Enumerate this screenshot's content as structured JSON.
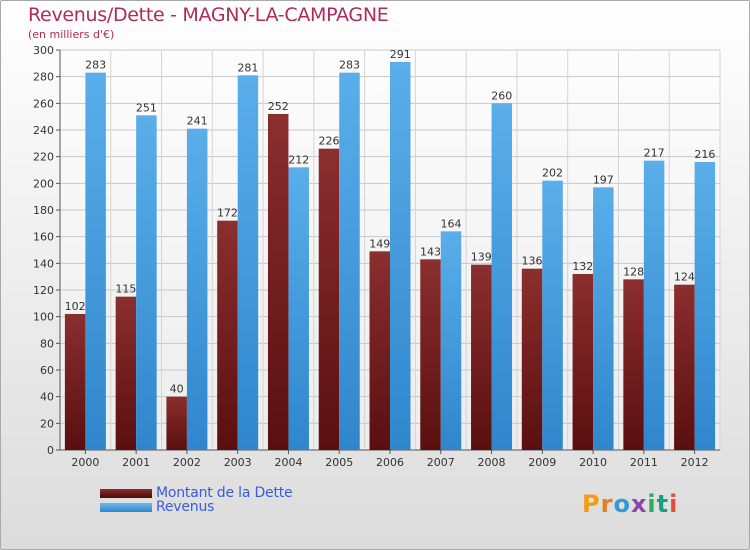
{
  "title": "Revenus/Dette - MAGNY-LA-CAMPAGNE",
  "subtitle": "(en milliers d'€)",
  "legend": {
    "dette_label": "Montant de la Dette",
    "revenus_label": "Revenus"
  },
  "logo_text": "Proxiti",
  "colors": {
    "dette": "#6b1a1a",
    "dette_light": "#8a3333",
    "revenus": "#4a9fde",
    "revenus_light": "#5aaeea",
    "title": "#b02a5c",
    "legend_text": "#3b5bdb"
  },
  "chart_data": {
    "type": "bar",
    "categories": [
      "2000",
      "2001",
      "2002",
      "2003",
      "2004",
      "2005",
      "2006",
      "2007",
      "2008",
      "2009",
      "2010",
      "2011",
      "2012"
    ],
    "series": [
      {
        "name": "Montant de la Dette",
        "values": [
          102,
          115,
          40,
          172,
          252,
          226,
          149,
          143,
          139,
          136,
          132,
          128,
          124
        ]
      },
      {
        "name": "Revenus",
        "values": [
          283,
          251,
          241,
          281,
          212,
          283,
          291,
          164,
          260,
          202,
          197,
          217,
          216
        ]
      }
    ],
    "yticks": [
      0,
      20,
      40,
      60,
      80,
      100,
      120,
      140,
      160,
      180,
      200,
      220,
      240,
      260,
      280,
      300
    ],
    "ylim": [
      0,
      300
    ],
    "grid": true,
    "legend_position": "bottom-left"
  }
}
